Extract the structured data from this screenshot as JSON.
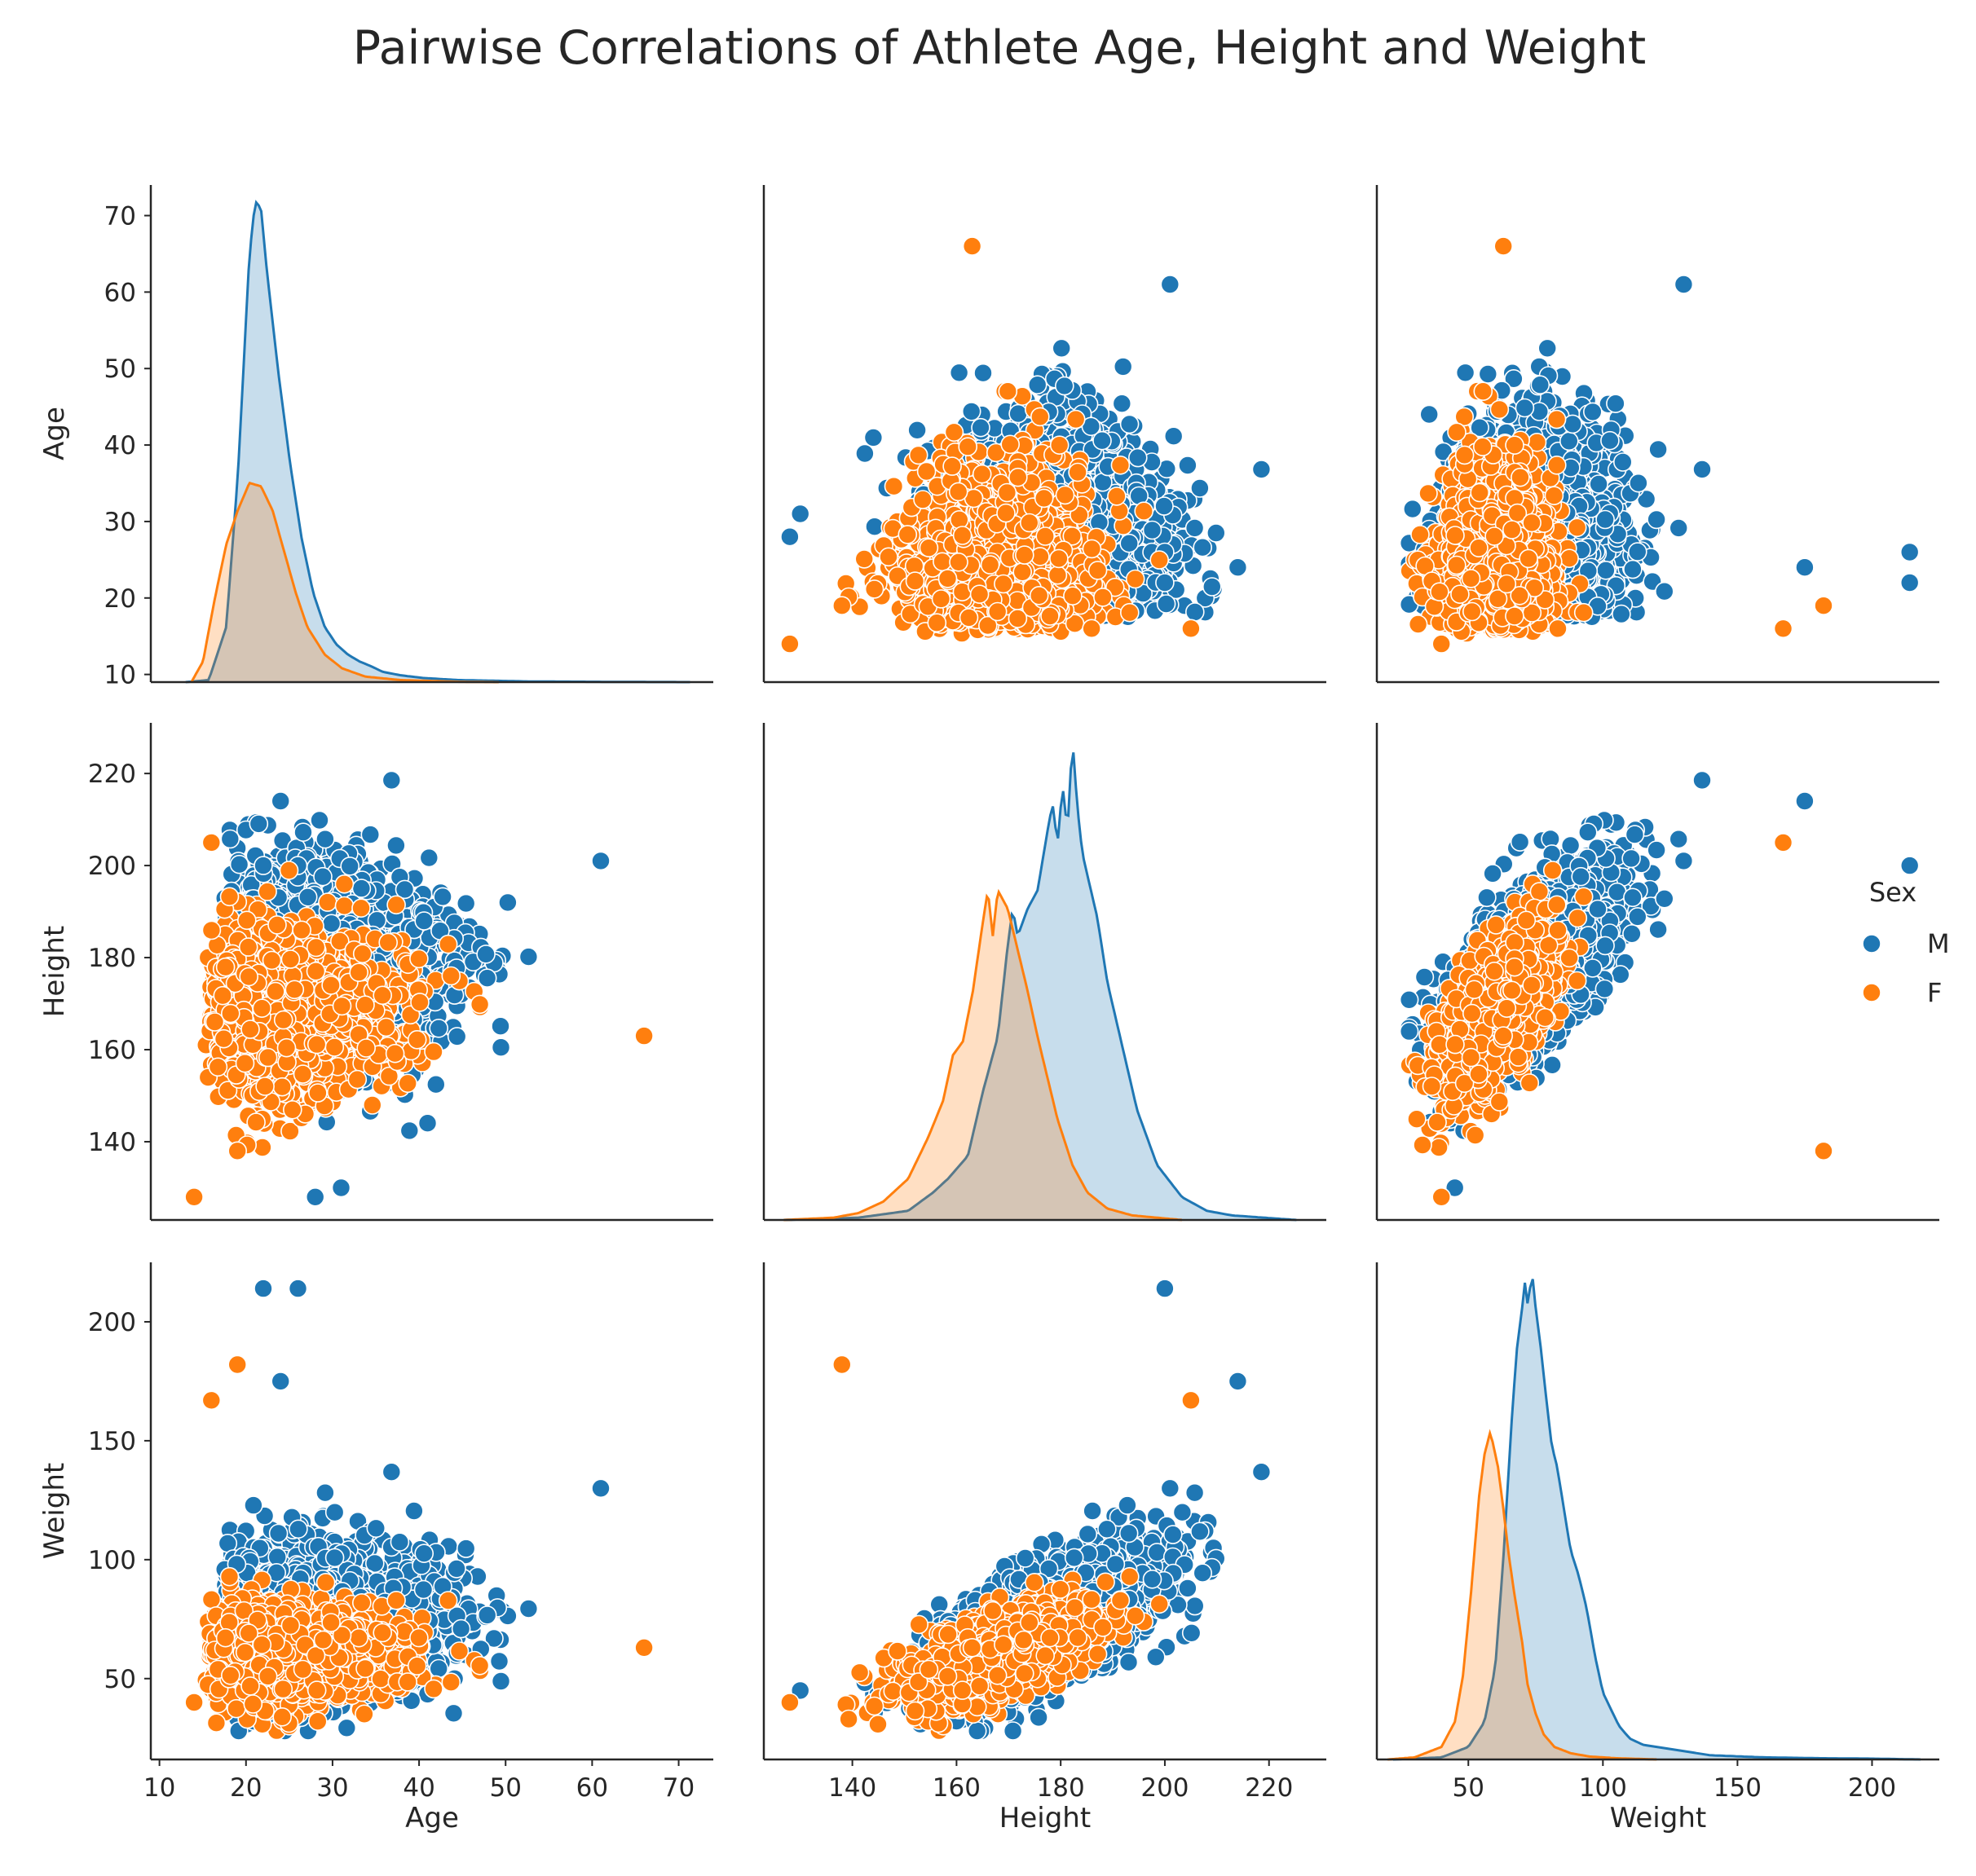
{
  "chart_data": {
    "type": "scatter",
    "title": "Pairwise Correlations of Athlete Age, Height and Weight",
    "variables": [
      "Age",
      "Height",
      "Weight"
    ],
    "hue": "Sex",
    "legend": {
      "title": "Sex",
      "placement": "center-right",
      "entries": [
        {
          "label": "M",
          "color": "#1f77b4"
        },
        {
          "label": "F",
          "color": "#ff7f0e"
        }
      ]
    },
    "axes": {
      "Age": {
        "label": "Age",
        "range": [
          9,
          74
        ],
        "ticks": [
          10,
          20,
          30,
          40,
          50,
          60,
          70
        ]
      },
      "Height": {
        "label": "Height",
        "range": [
          123,
          231
        ],
        "ticks": [
          140,
          160,
          180,
          200,
          220
        ]
      },
      "Weight": {
        "label": "Weight",
        "range": [
          16,
          225
        ],
        "ticks": [
          50,
          100,
          150,
          200
        ]
      }
    },
    "diag_axes": {
      "Age": {
        "range": [
          5,
          102
        ],
        "ticks": [
          20,
          40,
          60,
          80,
          100
        ]
      },
      "Height": {
        "range": [
          121,
          234
        ],
        "ticks": [
          125,
          150,
          175,
          200,
          225
        ]
      },
      "Weight": {
        "range": [
          16,
          225
        ],
        "ticks": [
          50,
          100,
          150,
          200
        ]
      }
    },
    "kde": {
      "Age": {
        "M": [
          [
            11,
            0
          ],
          [
            15,
            0.3
          ],
          [
            18,
            8
          ],
          [
            20,
            30
          ],
          [
            22,
            62
          ],
          [
            23,
            70
          ],
          [
            24,
            69
          ],
          [
            25,
            60
          ],
          [
            27,
            45
          ],
          [
            29,
            32
          ],
          [
            31,
            21
          ],
          [
            33,
            13
          ],
          [
            35,
            8
          ],
          [
            37,
            5.5
          ],
          [
            39,
            4
          ],
          [
            41,
            3
          ],
          [
            43,
            2.3
          ],
          [
            45,
            1.5
          ],
          [
            48,
            1
          ],
          [
            52,
            0.6
          ],
          [
            58,
            0.3
          ],
          [
            70,
            0.1
          ],
          [
            85,
            0.03
          ],
          [
            98,
            0
          ]
        ],
        "F": [
          [
            12,
            0
          ],
          [
            14,
            3
          ],
          [
            16,
            12
          ],
          [
            18,
            20
          ],
          [
            20,
            25
          ],
          [
            22,
            29
          ],
          [
            24,
            28.5
          ],
          [
            26,
            25
          ],
          [
            28,
            19
          ],
          [
            30,
            13
          ],
          [
            32,
            8
          ],
          [
            35,
            4
          ],
          [
            38,
            2
          ],
          [
            42,
            0.8
          ],
          [
            48,
            0.3
          ],
          [
            58,
            0.05
          ],
          [
            65,
            0
          ]
        ]
      },
      "Height": {
        "M": [
          [
            125,
            0
          ],
          [
            140,
            0.5
          ],
          [
            150,
            2
          ],
          [
            155,
            6
          ],
          [
            158,
            9
          ],
          [
            162,
            14
          ],
          [
            165,
            28
          ],
          [
            168,
            40
          ],
          [
            170,
            60
          ],
          [
            171,
            68
          ],
          [
            172,
            62
          ],
          [
            174,
            68
          ],
          [
            176,
            72
          ],
          [
            178,
            85
          ],
          [
            179,
            91
          ],
          [
            180,
            82
          ],
          [
            181,
            95
          ],
          [
            182,
            85
          ],
          [
            183,
            105
          ],
          [
            184,
            90
          ],
          [
            185,
            80
          ],
          [
            188,
            66
          ],
          [
            190,
            52
          ],
          [
            193,
            38
          ],
          [
            196,
            24
          ],
          [
            200,
            12
          ],
          [
            205,
            5
          ],
          [
            210,
            2
          ],
          [
            215,
            1
          ],
          [
            228,
            0
          ]
        ],
        "F": [
          [
            125,
            0
          ],
          [
            135,
            0.5
          ],
          [
            140,
            1.5
          ],
          [
            145,
            4
          ],
          [
            150,
            9
          ],
          [
            154,
            18
          ],
          [
            157,
            26
          ],
          [
            159,
            36
          ],
          [
            161,
            39
          ],
          [
            163,
            50
          ],
          [
            165,
            65
          ],
          [
            166,
            72
          ],
          [
            167,
            62
          ],
          [
            168,
            72
          ],
          [
            169,
            70
          ],
          [
            170,
            68
          ],
          [
            172,
            59
          ],
          [
            174,
            50
          ],
          [
            176,
            40
          ],
          [
            178,
            31
          ],
          [
            180,
            22
          ],
          [
            183,
            12
          ],
          [
            186,
            6
          ],
          [
            190,
            2.5
          ],
          [
            195,
            1
          ],
          [
            205,
            0
          ]
        ]
      },
      "Weight": {
        "M": [
          [
            22,
            0
          ],
          [
            40,
            0.5
          ],
          [
            50,
            3
          ],
          [
            56,
            9
          ],
          [
            60,
            22
          ],
          [
            63,
            48
          ],
          [
            66,
            80
          ],
          [
            68,
            98
          ],
          [
            70,
            108
          ],
          [
            71,
            114
          ],
          [
            72,
            109
          ],
          [
            73,
            113
          ],
          [
            74,
            115
          ],
          [
            75,
            108
          ],
          [
            77,
            98
          ],
          [
            79,
            86
          ],
          [
            81,
            75
          ],
          [
            83,
            70
          ],
          [
            85,
            62
          ],
          [
            88,
            50
          ],
          [
            91,
            44
          ],
          [
            94,
            36
          ],
          [
            97,
            25
          ],
          [
            100,
            16
          ],
          [
            103,
            12
          ],
          [
            106,
            8
          ],
          [
            110,
            5
          ],
          [
            115,
            3.5
          ],
          [
            120,
            3
          ],
          [
            130,
            2
          ],
          [
            140,
            1
          ],
          [
            160,
            0.5
          ],
          [
            180,
            0.3
          ],
          [
            200,
            0.2
          ],
          [
            218,
            0
          ]
        ],
        "F": [
          [
            20,
            0
          ],
          [
            30,
            0.5
          ],
          [
            40,
            3
          ],
          [
            45,
            9
          ],
          [
            48,
            20
          ],
          [
            51,
            40
          ],
          [
            54,
            63
          ],
          [
            56,
            73
          ],
          [
            58,
            78
          ],
          [
            59,
            76
          ],
          [
            61,
            70
          ],
          [
            63,
            60
          ],
          [
            65,
            49
          ],
          [
            67,
            40
          ],
          [
            70,
            28
          ],
          [
            72,
            18
          ],
          [
            75,
            11
          ],
          [
            78,
            6
          ],
          [
            82,
            3
          ],
          [
            88,
            1.5
          ],
          [
            95,
            0.7
          ],
          [
            105,
            0.3
          ],
          [
            120,
            0
          ]
        ]
      }
    }
  }
}
